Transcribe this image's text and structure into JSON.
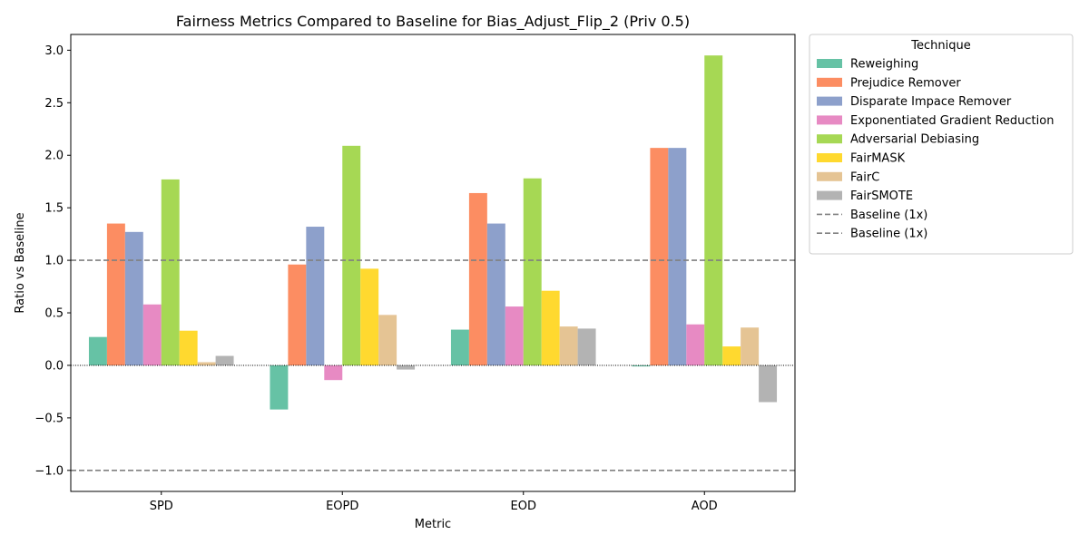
{
  "chart_data": {
    "type": "bar",
    "title": "Fairness Metrics Compared to Baseline for Bias_Adjust_Flip_2 (Priv 0.5)",
    "xlabel": "Metric",
    "ylabel": "Ratio vs Baseline",
    "categories": [
      "SPD",
      "EOPD",
      "EOD",
      "AOD"
    ],
    "ylim": [
      -1.2,
      3.15
    ],
    "yticks": [
      -1.0,
      -0.5,
      0.0,
      0.5,
      1.0,
      1.5,
      2.0,
      2.5,
      3.0
    ],
    "ytick_labels": [
      "−1.0",
      "−0.5",
      "0.0",
      "0.5",
      "1.0",
      "1.5",
      "2.0",
      "2.5",
      "3.0"
    ],
    "grid": false,
    "legend_title": "Technique",
    "legend_position": "outside-right-top",
    "series": [
      {
        "name": "Reweighing",
        "color": "#66c2a5",
        "values": [
          0.27,
          -0.42,
          0.34,
          -0.01
        ]
      },
      {
        "name": "Prejudice Remover",
        "color": "#fc8d62",
        "values": [
          1.35,
          0.96,
          1.64,
          2.07
        ]
      },
      {
        "name": "Disparate Impace Remover",
        "color": "#8da0cb",
        "values": [
          1.27,
          1.32,
          1.35,
          2.07
        ]
      },
      {
        "name": "Exponentiated Gradient Reduction",
        "color": "#e78ac3",
        "values": [
          0.58,
          -0.14,
          0.56,
          0.39
        ]
      },
      {
        "name": "Adversarial Debiasing",
        "color": "#a6d854",
        "values": [
          1.77,
          2.09,
          1.78,
          2.95
        ]
      },
      {
        "name": "FairMASK",
        "color": "#ffd92f",
        "values": [
          0.33,
          0.92,
          0.71,
          0.18
        ]
      },
      {
        "name": "FairC",
        "color": "#e5c494",
        "values": [
          0.03,
          0.48,
          0.37,
          0.36
        ]
      },
      {
        "name": "FairSMOTE",
        "color": "#b3b3b3",
        "values": [
          0.09,
          -0.04,
          0.35,
          -0.35
        ]
      }
    ],
    "reference_lines": [
      {
        "name": "Baseline (1x)",
        "value": 1.0,
        "color": "#808080",
        "style": "dashed"
      },
      {
        "name": "Baseline (1x)",
        "value": -1.0,
        "color": "#808080",
        "style": "dashed"
      }
    ],
    "zero_line": {
      "value": 0.0,
      "style": "dotted",
      "color": "#000000"
    }
  }
}
